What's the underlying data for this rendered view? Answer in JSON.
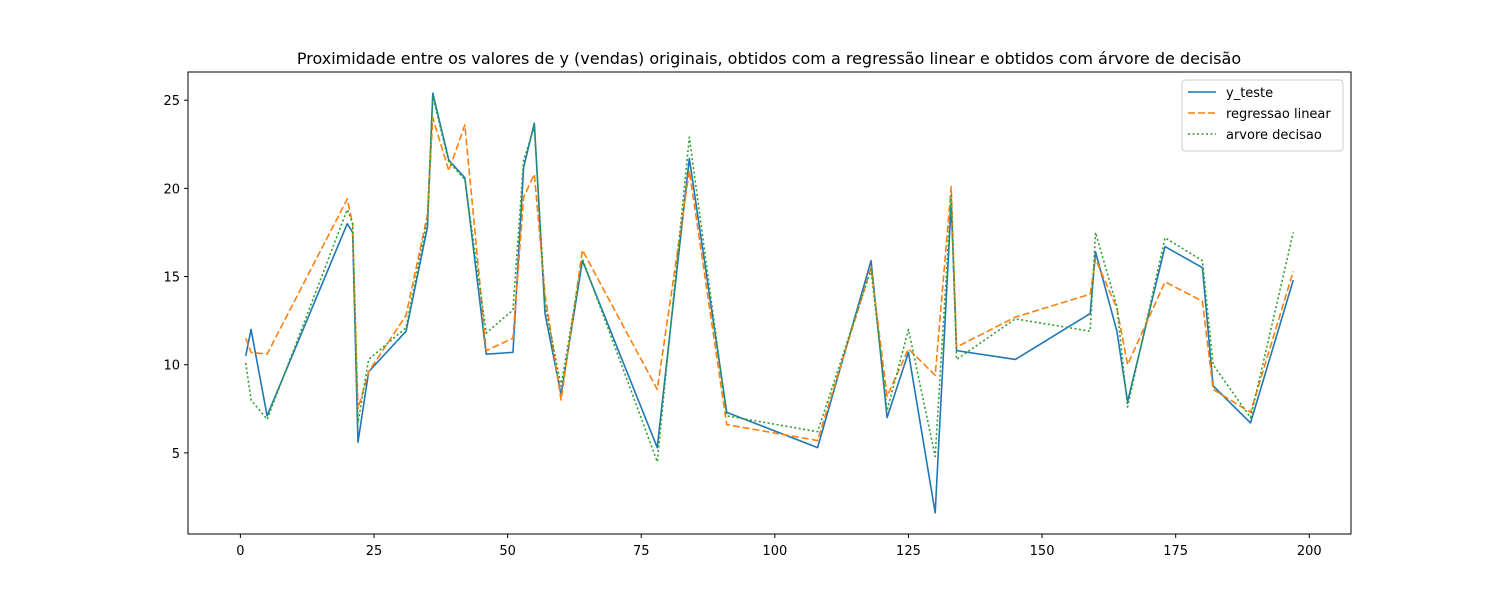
{
  "chart_data": {
    "type": "line",
    "title": "Proximidade entre os valores de y (vendas) originais, obtidos com a regressão linear e obtidos com árvore de decisão",
    "xlabel": "",
    "ylabel": "",
    "xlim": [
      -9.8,
      207.8
    ],
    "ylim": [
      0.4,
      26.6
    ],
    "xticks": [
      0,
      25,
      50,
      75,
      100,
      125,
      150,
      175,
      200
    ],
    "yticks": [
      5,
      10,
      15,
      20,
      25
    ],
    "grid": false,
    "legend_position": "top-right",
    "x": [
      1,
      2,
      5,
      20,
      21,
      22,
      24,
      31,
      35,
      36,
      39,
      42,
      46,
      51,
      53,
      55,
      57,
      60,
      64,
      78,
      84,
      91,
      108,
      118,
      121,
      125,
      130,
      133,
      134,
      145,
      159,
      160,
      164,
      166,
      173,
      180,
      182,
      189,
      197
    ],
    "series": [
      {
        "name": "y_teste",
        "color": "#1f77b4",
        "style": "solid",
        "values": [
          10.5,
          12.0,
          7.1,
          18.0,
          17.5,
          5.6,
          9.6,
          11.9,
          17.8,
          25.4,
          21.6,
          20.6,
          10.6,
          10.7,
          21.2,
          23.7,
          12.9,
          8.3,
          15.9,
          5.3,
          21.7,
          7.3,
          5.3,
          15.9,
          7.0,
          10.7,
          1.6,
          19.2,
          10.8,
          10.3,
          12.9,
          16.4,
          11.9,
          7.9,
          16.7,
          15.5,
          8.8,
          6.7,
          14.8
        ]
      },
      {
        "name": "regressao linear",
        "color": "#ff7f0e",
        "style": "dashed",
        "values": [
          11.5,
          10.7,
          10.6,
          19.4,
          18.0,
          7.5,
          9.6,
          12.8,
          18.5,
          24.0,
          21.0,
          23.6,
          10.8,
          11.5,
          19.5,
          20.8,
          14.0,
          8.0,
          16.5,
          8.6,
          21.0,
          6.6,
          5.7,
          15.5,
          8.2,
          10.9,
          9.4,
          20.1,
          11.0,
          12.7,
          14.0,
          16.0,
          13.2,
          10.0,
          14.7,
          13.6,
          8.6,
          7.3,
          15.3
        ]
      },
      {
        "name": "arvore decisao",
        "color": "#2ca02c",
        "style": "dotted",
        "values": [
          10.1,
          8.0,
          6.9,
          18.8,
          18.0,
          6.7,
          10.3,
          12.1,
          18.3,
          25.2,
          21.5,
          20.5,
          11.8,
          13.1,
          21.6,
          23.5,
          13.4,
          8.8,
          16.0,
          4.5,
          22.9,
          7.1,
          6.2,
          15.4,
          7.4,
          12.0,
          4.8,
          19.6,
          10.3,
          12.6,
          11.9,
          17.5,
          13.3,
          7.6,
          17.2,
          15.9,
          10.0,
          7.0,
          17.5
        ]
      }
    ]
  }
}
